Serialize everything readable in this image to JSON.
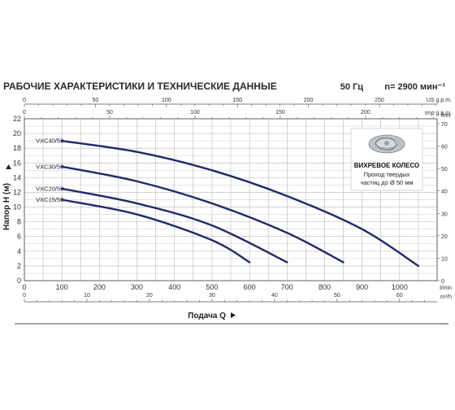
{
  "header": {
    "title": "РАБОЧИЕ ХАРАКТЕРИСТИКИ И ТЕХНИЧЕСКИЕ ДАННЫЕ",
    "frequency": "50 Гц",
    "speed": "n= 2900 мин⁻¹"
  },
  "colors": {
    "curve": "#1e2a6b",
    "grid": "#b9b9b9",
    "impeller_box_border": "#cccccc"
  },
  "impeller_box": {
    "icon": "impeller-icon",
    "title": "ВИХРЕВОЕ КОЛЕСО",
    "line1": "Проход твердых",
    "line2": "частиц до Ø 50 мм"
  },
  "chart_data": {
    "type": "line",
    "xlabel": "Подача Q",
    "ylabel": "Напор H (м)",
    "xlim": [
      0,
      1100
    ],
    "ylim": [
      0,
      22
    ],
    "grid": true,
    "x_unit": "l/min",
    "x_ticks": [
      "0",
      "100",
      "200",
      "300",
      "400",
      "500",
      "600",
      "700",
      "800",
      "900",
      "1000"
    ],
    "y_ticks": [
      "0",
      "2",
      "4",
      "6",
      "8",
      "10",
      "12",
      "14",
      "16",
      "18",
      "20",
      "22"
    ],
    "secondary_axes": {
      "top_us": {
        "unit": "US g.p.m.",
        "ticks": [
          "0",
          "50",
          "100",
          "150",
          "200",
          "250"
        ]
      },
      "top_imp": {
        "unit": "Imp g.p.m.",
        "ticks": [
          "0",
          "50",
          "100",
          "150",
          "200"
        ]
      },
      "bottom_m3h": {
        "unit": "m³/h",
        "ticks": [
          "0",
          "10",
          "20",
          "30",
          "40",
          "50",
          "60"
        ]
      },
      "right_feet": {
        "unit": "feet",
        "ticks": [
          "0",
          "10",
          "20",
          "30",
          "40",
          "50",
          "60",
          "70"
        ]
      }
    },
    "series": [
      {
        "name": "VXC40/50",
        "x": [
          100,
          300,
          500,
          700,
          900,
          1050
        ],
        "y": [
          19,
          17.5,
          15,
          11.5,
          7,
          2
        ]
      },
      {
        "name": "VXC30/50",
        "x": [
          100,
          300,
          500,
          700,
          850
        ],
        "y": [
          15.5,
          13.5,
          10.5,
          6.5,
          2.5
        ]
      },
      {
        "name": "VXC20/50",
        "x": [
          100,
          300,
          500,
          700
        ],
        "y": [
          12.5,
          10.5,
          7.5,
          2.5
        ]
      },
      {
        "name": "VXC15/50",
        "x": [
          100,
          300,
          500,
          600
        ],
        "y": [
          11,
          9,
          5.5,
          2.5
        ]
      }
    ]
  }
}
